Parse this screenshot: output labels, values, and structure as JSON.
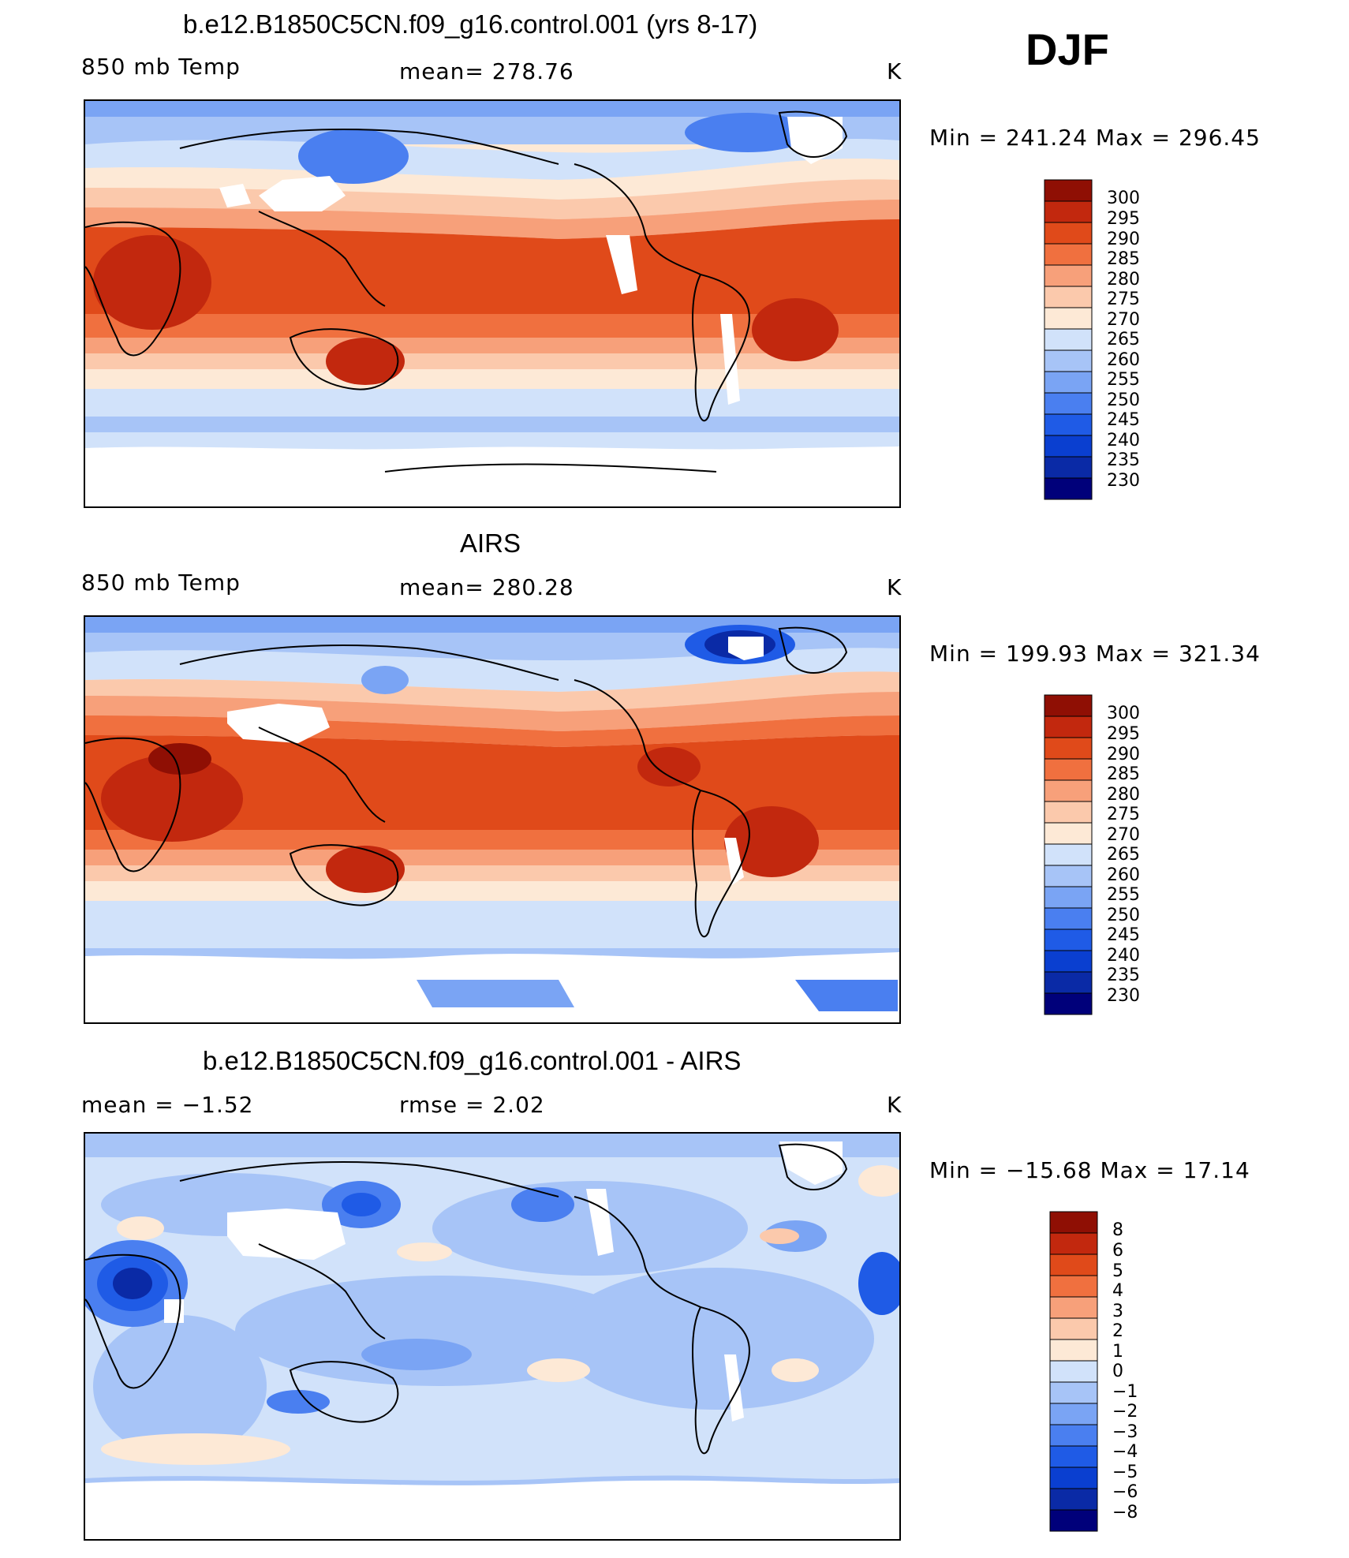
{
  "season": "DJF",
  "colors": {
    "abs_scale": [
      "#00007a",
      "#0a2aa6",
      "#0a3fd0",
      "#1f5be6",
      "#4a7ff0",
      "#7aa4f4",
      "#a7c4f7",
      "#d1e2fa",
      "#fde9d6",
      "#fbc9ac",
      "#f7a07a",
      "#f0703f",
      "#e04a1a",
      "#c2280e",
      "#8f0f04"
    ],
    "diff_scale": [
      "#00007a",
      "#0a2aa6",
      "#0a3fd0",
      "#1f5be6",
      "#4a7ff0",
      "#7aa4f4",
      "#a7c4f7",
      "#d1e2fa",
      "#fde9d6",
      "#fbc9ac",
      "#f7a07a",
      "#f0703f",
      "#e04a1a",
      "#c2280e",
      "#8f0f04"
    ]
  },
  "panels": [
    {
      "title": "b.e12.B1850C5CN.f09_g16.control.001 (yrs 8-17)",
      "left_label": "850 mb Temp",
      "center_label": "mean=  278.76",
      "units": "K",
      "minmax": "Min  =  241.24  Max  =  296.45",
      "colorbar_labels": [
        "300",
        "295",
        "290",
        "285",
        "280",
        "275",
        "270",
        "265",
        "260",
        "255",
        "250",
        "245",
        "240",
        "235",
        "230"
      ]
    },
    {
      "title": "AIRS",
      "left_label": "850 mb Temp",
      "center_label": "mean=  280.28",
      "units": "K",
      "minmax": "Min  =  199.93  Max  =  321.34",
      "colorbar_labels": [
        "300",
        "295",
        "290",
        "285",
        "280",
        "275",
        "270",
        "265",
        "260",
        "255",
        "250",
        "245",
        "240",
        "235",
        "230"
      ]
    },
    {
      "title": "b.e12.B1850C5CN.f09_g16.control.001 - AIRS",
      "left_label": "mean  =     −1.52",
      "center_label": "rmse  =     2.02",
      "units": "K",
      "minmax": "Min  =  −15.68  Max  =    17.14",
      "colorbar_labels": [
        "8",
        "6",
        "5",
        "4",
        "3",
        "2",
        "1",
        "0",
        "−1",
        "−2",
        "−3",
        "−4",
        "−5",
        "−6",
        "−8"
      ]
    }
  ]
}
